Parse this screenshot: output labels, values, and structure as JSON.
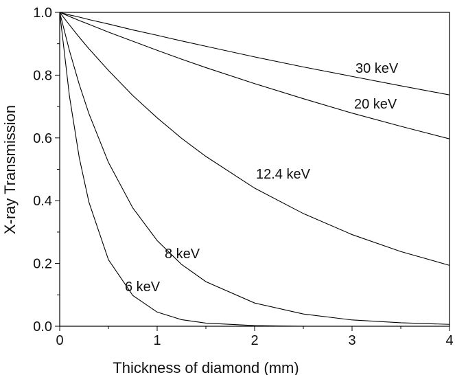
{
  "chart_data": {
    "type": "line",
    "x_label": "Thickness of diamond (mm)",
    "y_label": "X-ray Transmission",
    "x": [
      0,
      0.1,
      0.2,
      0.3,
      0.5,
      0.75,
      1,
      1.25,
      1.5,
      2,
      2.5,
      3,
      3.5,
      4
    ],
    "series": [
      {
        "name": "30 keV",
        "color": "#000000",
        "values": [
          1,
          0.992,
          0.985,
          0.977,
          0.963,
          0.944,
          0.927,
          0.909,
          0.892,
          0.858,
          0.826,
          0.796,
          0.766,
          0.737
        ]
      },
      {
        "name": "20 keV",
        "color": "#000000",
        "values": [
          1,
          0.987,
          0.974,
          0.962,
          0.937,
          0.908,
          0.879,
          0.851,
          0.824,
          0.773,
          0.725,
          0.679,
          0.637,
          0.597
        ]
      },
      {
        "name": "12.4 keV",
        "color": "#000000",
        "values": [
          1,
          0.96,
          0.921,
          0.884,
          0.815,
          0.735,
          0.664,
          0.599,
          0.541,
          0.44,
          0.359,
          0.292,
          0.238,
          0.194
        ]
      },
      {
        "name": "8 keV",
        "color": "#000000",
        "values": [
          1,
          0.878,
          0.771,
          0.677,
          0.522,
          0.377,
          0.273,
          0.197,
          0.142,
          0.074,
          0.039,
          0.02,
          0.011,
          0.006
        ]
      },
      {
        "name": "6 keV",
        "color": "#000000",
        "values": [
          1,
          0.733,
          0.538,
          0.395,
          0.212,
          0.098,
          0.045,
          0.021,
          0.01,
          0.002,
          0,
          0,
          0,
          0
        ]
      }
    ],
    "xlim": [
      0,
      4
    ],
    "xticks": [
      0,
      1,
      2,
      3,
      4
    ],
    "xminorticks": [
      0.5,
      1.5,
      2.5,
      3.5
    ],
    "ylim": [
      0,
      1
    ],
    "yticks": [
      {
        "value": 0,
        "label": "0.0"
      },
      0.2,
      0.4,
      0.6,
      0.8,
      {
        "value": 1,
        "label": "1.0"
      }
    ],
    "yminorticks": [
      0.1,
      0.3,
      0.5,
      0.7,
      0.9
    ]
  }
}
